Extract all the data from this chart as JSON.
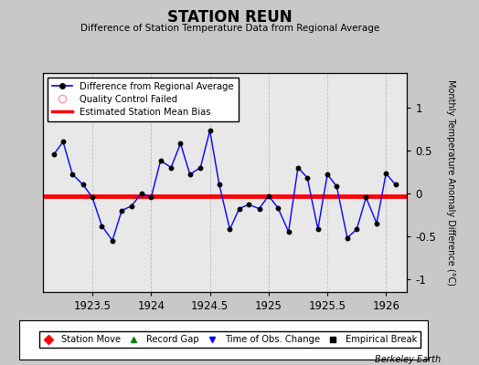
{
  "title": "STATION REUN",
  "subtitle": "Difference of Station Temperature Data from Regional Average",
  "ylabel_right": "Monthly Temperature Anomaly Difference (°C)",
  "bias_value": -0.03,
  "xlim": [
    1923.08,
    1926.18
  ],
  "ylim": [
    -1.15,
    1.4
  ],
  "yticks": [
    -1,
    -0.5,
    0,
    0.5,
    1
  ],
  "xticks": [
    1923.5,
    1924.0,
    1924.5,
    1925.0,
    1925.5,
    1926.0
  ],
  "xtick_labels": [
    "1923.5",
    "1924",
    "1924.5",
    "1925",
    "1925.5",
    "1926"
  ],
  "background_color": "#e8e8e8",
  "fig_background_color": "#c8c8c8",
  "x_data": [
    1923.17,
    1923.25,
    1923.33,
    1923.42,
    1923.5,
    1923.58,
    1923.67,
    1923.75,
    1923.83,
    1923.92,
    1924.0,
    1924.08,
    1924.17,
    1924.25,
    1924.33,
    1924.42,
    1924.5,
    1924.58,
    1924.67,
    1924.75,
    1924.83,
    1924.92,
    1925.0,
    1925.08,
    1925.17,
    1925.25,
    1925.33,
    1925.42,
    1925.5,
    1925.58,
    1925.67,
    1925.75,
    1925.83,
    1925.92,
    1926.0,
    1926.08
  ],
  "y_data": [
    0.45,
    0.6,
    0.22,
    0.1,
    -0.05,
    -0.38,
    -0.55,
    -0.2,
    -0.15,
    0.0,
    -0.05,
    0.38,
    0.3,
    0.58,
    0.22,
    0.3,
    0.73,
    0.1,
    -0.42,
    -0.18,
    -0.13,
    -0.18,
    -0.03,
    -0.17,
    -0.45,
    0.3,
    0.18,
    -0.42,
    0.22,
    0.08,
    -0.52,
    -0.42,
    -0.05,
    -0.35,
    0.23,
    0.1
  ],
  "line_color": "blue",
  "marker_color": "black",
  "bias_color": "red",
  "grid_color": "#bbbbbb",
  "watermark": "Berkeley Earth",
  "legend2_items": [
    {
      "label": "Station Move",
      "color": "red",
      "marker": "D"
    },
    {
      "label": "Record Gap",
      "color": "green",
      "marker": "^"
    },
    {
      "label": "Time of Obs. Change",
      "color": "blue",
      "marker": "v"
    },
    {
      "label": "Empirical Break",
      "color": "black",
      "marker": "s"
    }
  ]
}
